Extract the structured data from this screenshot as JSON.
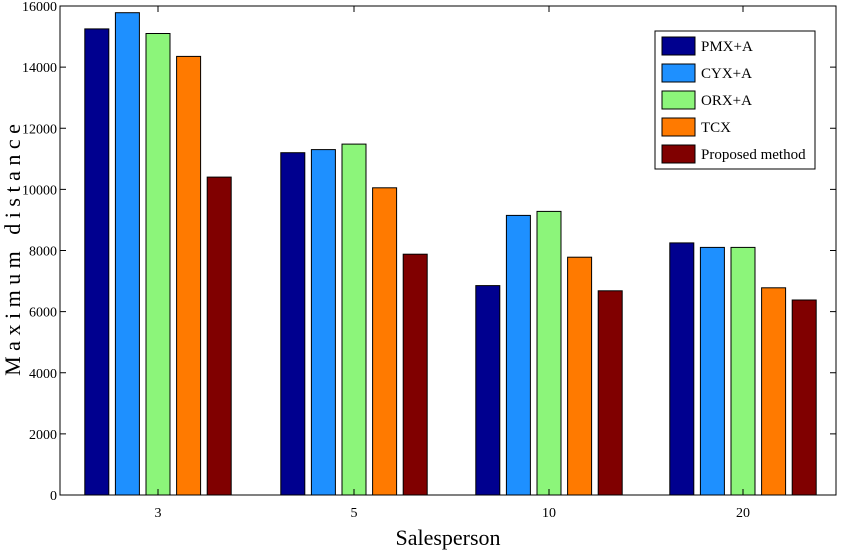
{
  "chart_data": {
    "type": "bar",
    "title": "",
    "xlabel": "Salesperson",
    "ylabel": "M a x i m u m   d i s t a n c e",
    "categories": [
      "3",
      "5",
      "10",
      "20"
    ],
    "ylim": [
      0,
      16000
    ],
    "yticks": [
      0,
      2000,
      4000,
      6000,
      8000,
      10000,
      12000,
      14000,
      16000
    ],
    "legend_position": "top-right",
    "series": [
      {
        "name": "PMX+A",
        "color": "#00008f",
        "values": [
          15250,
          11200,
          6850,
          8250
        ]
      },
      {
        "name": "CYX+A",
        "color": "#1e90ff",
        "values": [
          15780,
          11300,
          9150,
          8100
        ]
      },
      {
        "name": "ORX+A",
        "color": "#8cf57a",
        "values": [
          15100,
          11480,
          9280,
          8100
        ]
      },
      {
        "name": "TCX",
        "color": "#ff7a00",
        "values": [
          14350,
          10050,
          7780,
          6780
        ]
      },
      {
        "name": "Proposed method",
        "color": "#800000",
        "values": [
          10400,
          7880,
          6680,
          6380
        ]
      }
    ]
  }
}
